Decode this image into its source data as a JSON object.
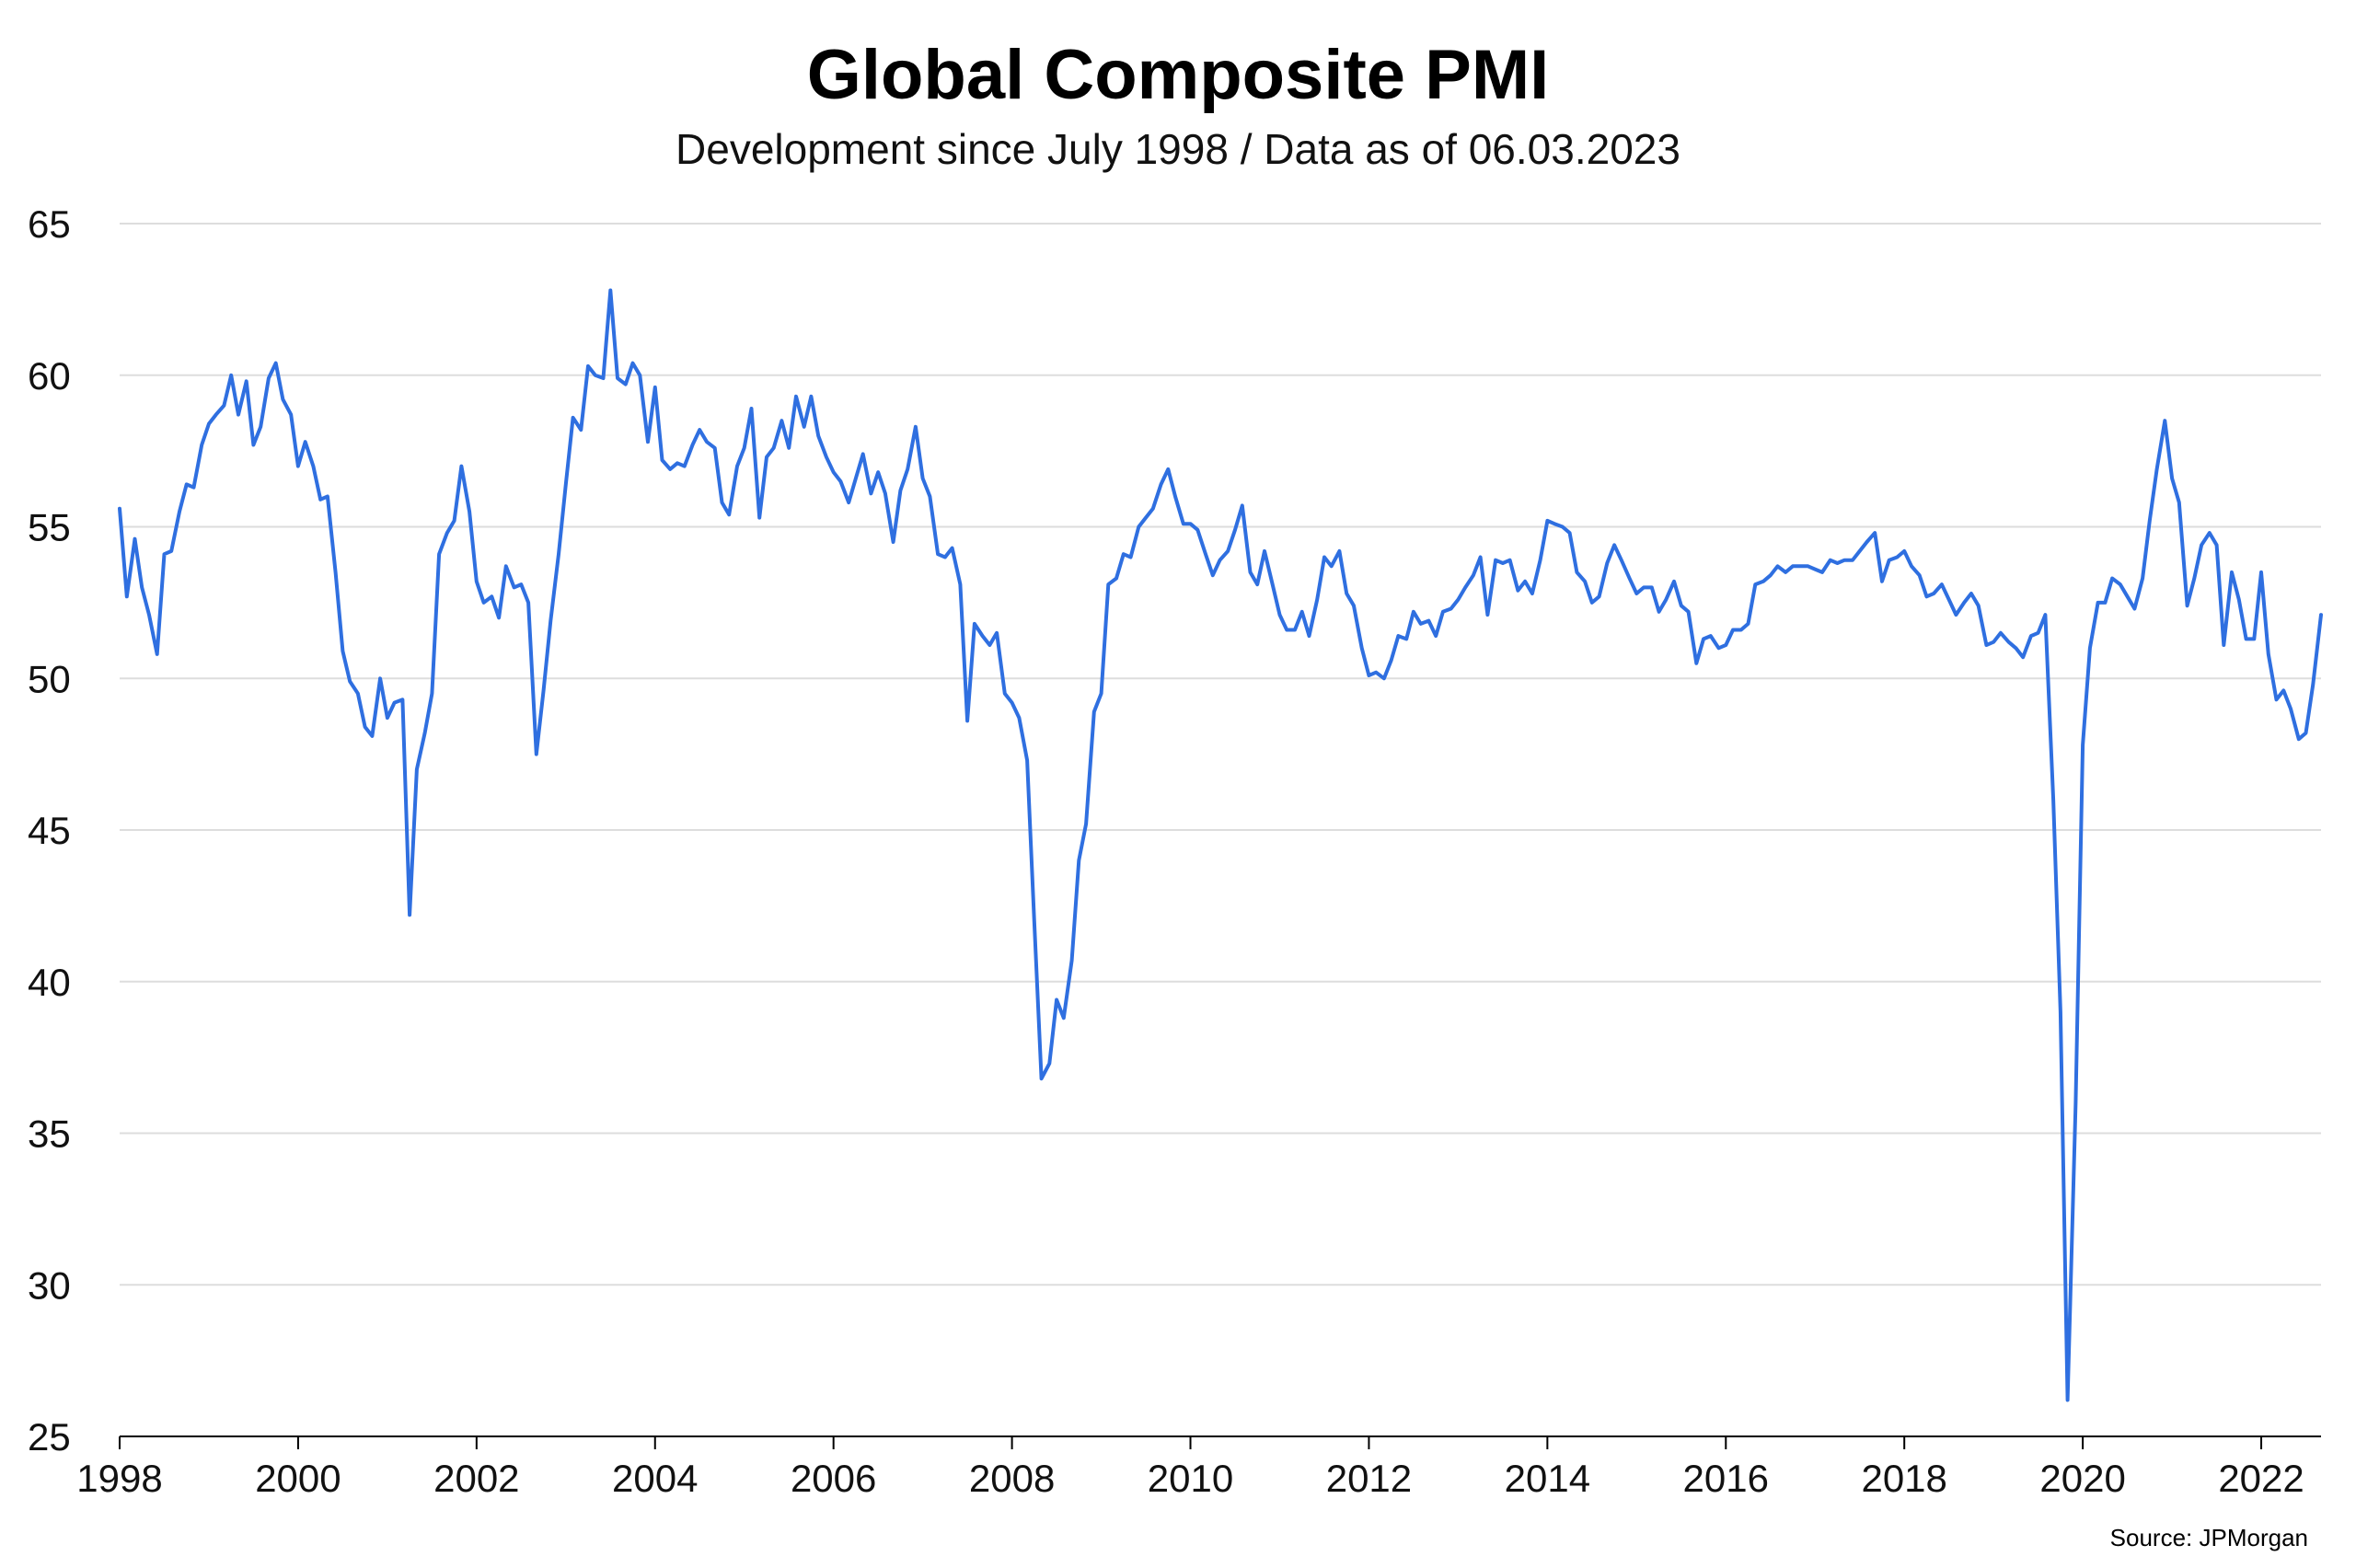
{
  "chart_data": {
    "type": "line",
    "title": "Global Composite PMI",
    "subtitle": "Development since July 1998 / Data as of 06.03.2023",
    "source": "Source: JPMorgan",
    "xlabel": "",
    "ylabel": "",
    "xlim": [
      1998.0,
      2022.67
    ],
    "ylim": [
      25,
      65
    ],
    "y_ticks": [
      25,
      30,
      35,
      40,
      45,
      50,
      55,
      60,
      65
    ],
    "x_ticks": [
      1998,
      2000,
      2002,
      2004,
      2006,
      2008,
      2010,
      2012,
      2014,
      2016,
      2018,
      2020,
      2022
    ],
    "grid": true,
    "legend": "none",
    "colors": {
      "line": "#2f6fe0",
      "grid": "#dddddd",
      "axis": "#000000"
    },
    "series": [
      {
        "name": "Global Composite PMI",
        "x": [
          1998.0,
          1998.08,
          1998.17,
          1998.25,
          1998.33,
          1998.42,
          1998.5,
          1998.58,
          1998.67,
          1998.75,
          1998.83,
          1998.92,
          1999.0,
          1999.08,
          1999.17,
          1999.25,
          1999.33,
          1999.42,
          1999.5,
          1999.58,
          1999.67,
          1999.75,
          1999.83,
          1999.92,
          2000.0,
          2000.08,
          2000.17,
          2000.25,
          2000.33,
          2000.42,
          2000.5,
          2000.58,
          2000.67,
          2000.75,
          2000.83,
          2000.92,
          2001.0,
          2001.08,
          2001.17,
          2001.25,
          2001.33,
          2001.42,
          2001.5,
          2001.58,
          2001.67,
          2001.75,
          2001.83,
          2001.92,
          2002.0,
          2002.08,
          2002.17,
          2002.25,
          2002.33,
          2002.42,
          2002.5,
          2002.58,
          2002.67,
          2002.75,
          2002.83,
          2002.92,
          2003.0,
          2003.08,
          2003.17,
          2003.25,
          2003.33,
          2003.42,
          2003.5,
          2003.58,
          2003.67,
          2003.75,
          2003.83,
          2003.92,
          2004.0,
          2004.08,
          2004.17,
          2004.25,
          2004.33,
          2004.42,
          2004.5,
          2004.58,
          2004.67,
          2004.75,
          2004.83,
          2004.92,
          2005.0,
          2005.08,
          2005.17,
          2005.25,
          2005.33,
          2005.42,
          2005.5,
          2005.58,
          2005.67,
          2005.75,
          2005.83,
          2005.92,
          2006.0,
          2006.08,
          2006.17,
          2006.25,
          2006.33,
          2006.42,
          2006.5,
          2006.58,
          2006.67,
          2006.75,
          2006.83,
          2006.92,
          2007.0,
          2007.08,
          2007.17,
          2007.25,
          2007.33,
          2007.42,
          2007.5,
          2007.58,
          2007.67,
          2007.75,
          2007.83,
          2007.92,
          2008.0,
          2008.08,
          2008.17,
          2008.25,
          2008.33,
          2008.42,
          2008.5,
          2008.58,
          2008.67,
          2008.75,
          2008.83,
          2008.92,
          2009.0,
          2009.08,
          2009.17,
          2009.25,
          2009.33,
          2009.42,
          2009.5,
          2009.58,
          2009.67,
          2009.75,
          2009.83,
          2009.92,
          2010.0,
          2010.08,
          2010.17,
          2010.25,
          2010.33,
          2010.42,
          2010.5,
          2010.58,
          2010.67,
          2010.75,
          2010.83,
          2010.92,
          2011.0,
          2011.08,
          2011.17,
          2011.25,
          2011.33,
          2011.42,
          2011.5,
          2011.58,
          2011.67,
          2011.75,
          2011.83,
          2011.92,
          2012.0,
          2012.08,
          2012.17,
          2012.25,
          2012.33,
          2012.42,
          2012.5,
          2012.58,
          2012.67,
          2012.75,
          2012.83,
          2012.92,
          2013.0,
          2013.08,
          2013.17,
          2013.25,
          2013.33,
          2013.42,
          2013.5,
          2013.58,
          2013.67,
          2013.75,
          2013.83,
          2013.92,
          2014.0,
          2014.08,
          2014.17,
          2014.25,
          2014.33,
          2014.42,
          2014.5,
          2014.58,
          2014.67,
          2014.75,
          2014.83,
          2014.92,
          2015.0,
          2015.08,
          2015.17,
          2015.25,
          2015.33,
          2015.42,
          2015.5,
          2015.58,
          2015.67,
          2015.75,
          2015.83,
          2015.92,
          2016.0,
          2016.08,
          2016.17,
          2016.25,
          2016.33,
          2016.42,
          2016.5,
          2016.58,
          2016.67,
          2016.75,
          2016.83,
          2016.92,
          2017.0,
          2017.08,
          2017.17,
          2017.25,
          2017.33,
          2017.42,
          2017.5,
          2017.58,
          2017.67,
          2017.75,
          2017.83,
          2017.92,
          2018.0,
          2018.08,
          2018.17,
          2018.25,
          2018.33,
          2018.42,
          2018.5,
          2018.58,
          2018.67,
          2018.75,
          2018.83,
          2018.92,
          2019.0,
          2019.08,
          2019.17,
          2019.25,
          2019.33,
          2019.42,
          2019.5,
          2019.58,
          2019.67,
          2019.75,
          2019.83,
          2019.92,
          2020.0,
          2020.08,
          2020.17,
          2020.25,
          2020.33,
          2020.42,
          2020.5,
          2020.58,
          2020.67,
          2020.75,
          2020.83,
          2020.92,
          2021.0,
          2021.08,
          2021.17,
          2021.25,
          2021.33,
          2021.42,
          2021.5,
          2021.58,
          2021.67,
          2021.75,
          2021.83,
          2021.92,
          2022.0,
          2022.08,
          2022.17,
          2022.25,
          2022.33,
          2022.42,
          2022.5,
          2022.58,
          2022.67
        ],
        "values": [
          55.6,
          52.7,
          54.6,
          53.0,
          52.1,
          50.8,
          54.1,
          54.2,
          55.5,
          56.4,
          56.3,
          57.7,
          58.4,
          58.7,
          59.0,
          60.0,
          58.7,
          59.8,
          57.7,
          58.3,
          59.9,
          60.4,
          59.2,
          58.7,
          57.0,
          57.8,
          57.0,
          55.9,
          56.0,
          53.5,
          50.9,
          49.9,
          49.5,
          48.4,
          48.1,
          50.0,
          48.7,
          49.2,
          49.3,
          42.2,
          47.0,
          48.2,
          49.5,
          54.1,
          54.8,
          55.2,
          57.0,
          55.5,
          53.2,
          52.5,
          52.7,
          52.0,
          53.7,
          53.0,
          53.1,
          52.5,
          47.5,
          49.6,
          51.9,
          54.1,
          56.4,
          58.6,
          58.2,
          60.3,
          60.0,
          59.9,
          62.8,
          59.9,
          59.7,
          60.4,
          60.0,
          57.8,
          59.6,
          57.2,
          56.9,
          57.1,
          57.0,
          57.7,
          58.2,
          57.8,
          57.6,
          55.8,
          55.4,
          57.0,
          57.6,
          58.9,
          55.3,
          57.3,
          57.6,
          58.5,
          57.6,
          59.3,
          58.3,
          59.3,
          58.0,
          57.3,
          56.8,
          56.5,
          55.8,
          56.6,
          57.4,
          56.1,
          56.8,
          56.1,
          54.5,
          56.2,
          56.9,
          58.3,
          56.6,
          56.0,
          54.1,
          54.0,
          54.3,
          53.1,
          48.6,
          51.8,
          51.4,
          51.1,
          51.5,
          49.5,
          49.2,
          48.7,
          47.3,
          42.0,
          36.8,
          37.3,
          39.4,
          38.8,
          40.7,
          44.0,
          45.2,
          48.9,
          49.5,
          53.1,
          53.3,
          54.1,
          54.0,
          55.0,
          55.3,
          55.6,
          56.4,
          56.9,
          56.0,
          55.1,
          55.1,
          54.9,
          54.1,
          53.4,
          53.9,
          54.2,
          54.9,
          55.7,
          53.5,
          53.1,
          54.2,
          53.1,
          52.1,
          51.6,
          51.6,
          52.2,
          51.4,
          52.6,
          54.0,
          53.7,
          54.2,
          52.8,
          52.4,
          51.0,
          50.1,
          50.2,
          50.0,
          50.6,
          51.4,
          51.3,
          52.2,
          51.8,
          51.9,
          51.4,
          52.2,
          52.3,
          52.6,
          53.0,
          53.4,
          54.0,
          52.1,
          53.9,
          53.8,
          53.9,
          52.9,
          53.2,
          52.8,
          53.9,
          55.2,
          55.1,
          55.0,
          54.8,
          53.5,
          53.2,
          52.5,
          52.7,
          53.8,
          54.4,
          53.9,
          53.3,
          52.8,
          53.0,
          53.0,
          52.2,
          52.6,
          53.2,
          52.4,
          52.2,
          50.5,
          51.3,
          51.4,
          51.0,
          51.1,
          51.6,
          51.6,
          51.8,
          53.1,
          53.2,
          53.4,
          53.7,
          53.5,
          53.7,
          53.7,
          53.7,
          53.6,
          53.5,
          53.9,
          53.8,
          53.9,
          53.9,
          54.2,
          54.5,
          54.8,
          53.2,
          53.9,
          54.0,
          54.2,
          53.7,
          53.4,
          52.7,
          52.8,
          53.1,
          52.6,
          52.1,
          52.5,
          52.8,
          52.4,
          51.1,
          51.2,
          51.5,
          51.2,
          51.0,
          50.7,
          51.4,
          51.5,
          52.1,
          46.0,
          39.0,
          26.2,
          36.0,
          47.8,
          51.0,
          52.5,
          52.5,
          53.3,
          53.1,
          52.7,
          52.3,
          53.3,
          55.2,
          56.9,
          58.5,
          56.6,
          55.8,
          52.4,
          53.3,
          54.4,
          54.8,
          54.4,
          51.1,
          53.5,
          52.6,
          51.3,
          51.3,
          53.5,
          50.8,
          49.3,
          49.6,
          49.0,
          48.0,
          48.2,
          49.8,
          52.1
        ]
      }
    ]
  }
}
